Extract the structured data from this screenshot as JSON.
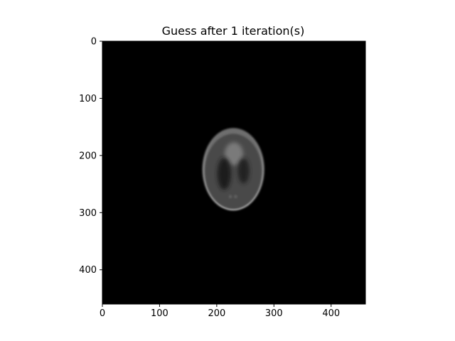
{
  "chart_data": {
    "type": "heatmap",
    "title": "Guess after 1 iteration(s)",
    "xlabel": "",
    "ylabel": "",
    "image_size": [
      460,
      460
    ],
    "xlim": [
      0,
      460
    ],
    "ylim": [
      460,
      0
    ],
    "x_ticks": [
      0,
      100,
      200,
      300,
      400
    ],
    "y_ticks": [
      0,
      100,
      200,
      300,
      400
    ],
    "colormap": "gray",
    "background_color": "#000000",
    "grid": false,
    "legend": "none",
    "content": {
      "description_free": true,
      "outer_ellipse": {
        "cx": 229,
        "cy": 224,
        "rx": 54,
        "ry": 72
      },
      "brain_region": {
        "cx": 229,
        "cy": 228,
        "rx": 50,
        "ry": 66
      },
      "upper_blob": {
        "cx": 230,
        "cy": 197,
        "rx": 16,
        "ry": 20
      },
      "left_dark_lobe": {
        "cx": 213,
        "cy": 232,
        "rx": 12,
        "ry": 28
      },
      "right_dark_lobe": {
        "cx": 247,
        "cy": 227,
        "rx": 10,
        "ry": 22
      },
      "lower_spots": [
        {
          "cx": 224,
          "cy": 272,
          "r": 3
        },
        {
          "cx": 233,
          "cy": 272,
          "r": 3
        }
      ]
    }
  }
}
